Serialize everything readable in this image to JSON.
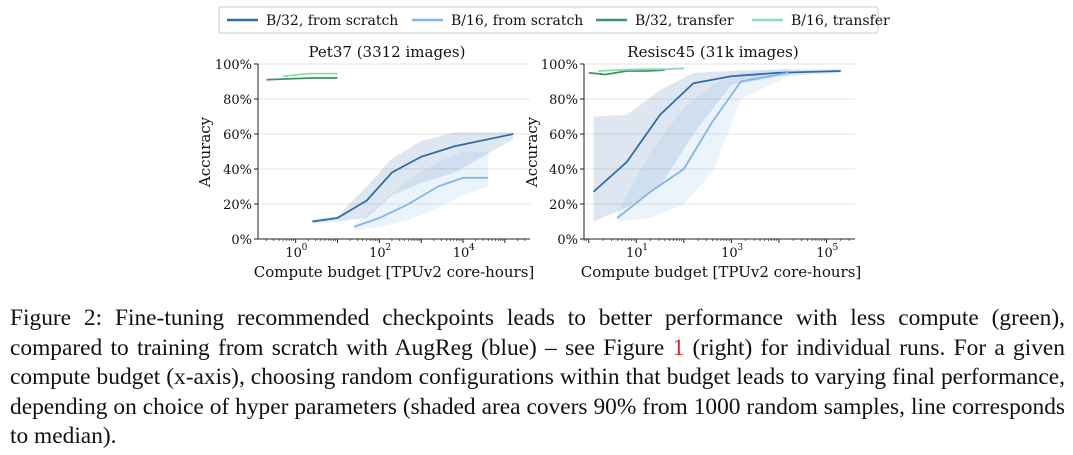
{
  "legend": {
    "entries": [
      {
        "label": "B/32, from scratch",
        "color": "#2f6ca8"
      },
      {
        "label": "B/16, from scratch",
        "color": "#83b6e6"
      },
      {
        "label": "B/32, transfer",
        "color": "#3a9466"
      },
      {
        "label": "B/16, transfer",
        "color": "#8ed8b2"
      }
    ]
  },
  "chart_data": [
    {
      "type": "line",
      "title": "Pet37 (3312 images)",
      "xlabel": "Compute budget [TPUv2 core-hours]",
      "ylabel": "Accuracy",
      "x_scale": "log",
      "xlim_log10": [
        -0.9,
        5.6
      ],
      "ylim": [
        0,
        100
      ],
      "x_ticks_log10": [
        0,
        2,
        4
      ],
      "x_tick_labels": [
        "10",
        "10",
        "10"
      ],
      "x_tick_exponents": [
        "0",
        "2",
        "4"
      ],
      "y_ticks": [
        0,
        20,
        40,
        60,
        80,
        100
      ],
      "y_tick_labels": [
        "0%",
        "20%",
        "40%",
        "60%",
        "80%",
        "100%"
      ],
      "grid": true,
      "series": [
        {
          "name": "B/32, from scratch",
          "color": "#2f6ca8",
          "x_log10": [
            0.4,
            1.0,
            1.7,
            2.3,
            3.0,
            3.8,
            5.2
          ],
          "values": [
            10,
            12,
            22,
            38,
            47,
            53,
            60
          ],
          "band_upper": [
            11,
            13,
            30,
            46,
            56,
            61,
            61
          ],
          "band_lower": [
            9,
            10,
            12,
            25,
            32,
            38,
            57
          ]
        },
        {
          "name": "B/16, from scratch",
          "color": "#83b6e6",
          "x_log10": [
            1.4,
            2.0,
            2.7,
            3.4,
            4.0,
            4.6
          ],
          "values": [
            7,
            12,
            20,
            30,
            35,
            35
          ],
          "band_upper": [
            8,
            20,
            34,
            44,
            50,
            50
          ],
          "band_lower": [
            5,
            7,
            11,
            18,
            25,
            30
          ]
        },
        {
          "name": "B/32, transfer",
          "color": "#3a9466",
          "x_log10": [
            -0.7,
            -0.2,
            0.4,
            1.0
          ],
          "values": [
            91,
            91.5,
            92,
            92
          ]
        },
        {
          "name": "B/16, transfer",
          "color": "#8ed8b2",
          "x_log10": [
            -0.3,
            0.3,
            1.0
          ],
          "values": [
            93,
            94.5,
            94.5
          ]
        }
      ]
    },
    {
      "type": "line",
      "title": "Resisc45 (31k images)",
      "xlabel": "Compute budget [TPUv2 core-hours]",
      "ylabel": "Accuracy",
      "x_scale": "log",
      "xlim_log10": [
        -0.1,
        5.6
      ],
      "ylim": [
        0,
        100
      ],
      "x_ticks_log10": [
        1,
        3,
        5
      ],
      "x_tick_labels": [
        "10",
        "10",
        "10"
      ],
      "x_tick_exponents": [
        "1",
        "3",
        "5"
      ],
      "y_ticks": [
        0,
        20,
        40,
        60,
        80,
        100
      ],
      "y_tick_labels": [
        "0%",
        "20%",
        "40%",
        "60%",
        "80%",
        "100%"
      ],
      "grid": true,
      "series": [
        {
          "name": "B/32, from scratch",
          "color": "#2f6ca8",
          "x_log10": [
            0.1,
            0.8,
            1.5,
            2.2,
            3.0,
            4.0,
            5.3
          ],
          "values": [
            27,
            44,
            71,
            89,
            93,
            95,
            96
          ],
          "band_upper": [
            70,
            71,
            85,
            95,
            96,
            97,
            97
          ],
          "band_lower": [
            10,
            18,
            30,
            60,
            88,
            93,
            95
          ]
        },
        {
          "name": "B/16, from scratch",
          "color": "#83b6e6",
          "x_log10": [
            0.6,
            1.3,
            2.0,
            2.6,
            3.2,
            4.2
          ],
          "values": [
            12,
            27,
            40,
            67,
            90,
            95
          ],
          "band_upper": [
            15,
            50,
            75,
            88,
            95,
            97
          ],
          "band_lower": [
            10,
            12,
            20,
            38,
            80,
            93
          ]
        },
        {
          "name": "B/32, transfer",
          "color": "#3a9466",
          "x_log10": [
            0.0,
            0.35,
            0.8,
            1.2,
            1.6
          ],
          "values": [
            95,
            94,
            96,
            96,
            96.5
          ]
        },
        {
          "name": "B/16, transfer",
          "color": "#8ed8b2",
          "x_log10": [
            0.2,
            0.6,
            1.1,
            1.6,
            2.0
          ],
          "values": [
            96,
            96.5,
            97,
            97,
            97.5
          ]
        }
      ]
    }
  ],
  "caption": {
    "text_before": "Figure 2: Fine-tuning recommended checkpoints leads to better performance with less compute (green), compared to training from scratch with AugReg (blue) – see Figure ",
    "ref": "1",
    "text_after": " (right) for individual runs. For a given compute budget (x-axis), choosing random configurations within that budget leads to varying final performance, depending on choice of hyper parameters (shaded area covers 90% from 1000 random samples, line corresponds to median)."
  }
}
